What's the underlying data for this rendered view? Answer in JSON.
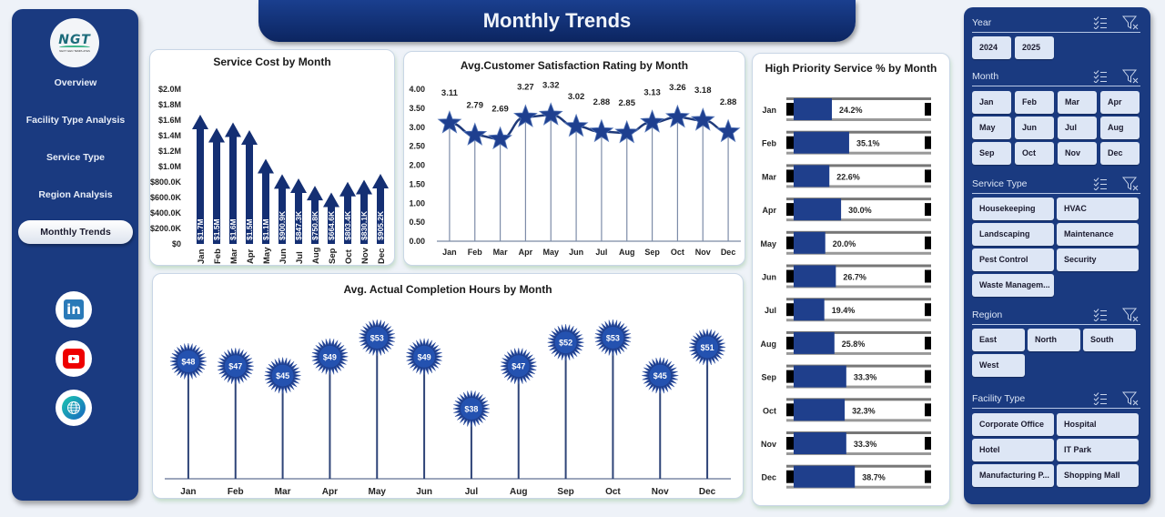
{
  "nav": {
    "logo_text": "NGT",
    "logo_tagline": "NEXT GEN TEMPLATES",
    "items": [
      {
        "label": "Overview"
      },
      {
        "label": "Facility Type Analysis"
      },
      {
        "label": "Service Type"
      },
      {
        "label": "Region Analysis"
      },
      {
        "label": "Monthly Trends",
        "active": true
      }
    ],
    "social": [
      "linkedin-icon",
      "youtube-icon",
      "globe-icon"
    ]
  },
  "header": {
    "title": "Monthly Trends"
  },
  "colors": {
    "navy": "#1a3a80",
    "bar": "#142f73",
    "star": "#1e3f8f",
    "accent_bar": "#1f3f8c"
  },
  "chart_data": [
    {
      "type": "bar",
      "title": "Service Cost by Month",
      "categories": [
        "Jan",
        "Feb",
        "Mar",
        "Apr",
        "May",
        "Jun",
        "Jul",
        "Aug",
        "Sep",
        "Oct",
        "Nov",
        "Dec"
      ],
      "values": [
        1670000,
        1500000,
        1570000,
        1470000,
        1100000,
        900900,
        847300,
        750800,
        664600,
        803400,
        830100,
        905200
      ],
      "labels": [
        "$1.7M",
        "$1.5M",
        "$1.6M",
        "$1.5M",
        "$1.1M",
        "$900.9K",
        "$847.3K",
        "$750.8K",
        "$664.6K",
        "$803.4K",
        "$830.1K",
        "$905.2K"
      ],
      "yticks": [
        "$0",
        "$200.0K",
        "$400.0K",
        "$600.0K",
        "$800.0K",
        "$1.0M",
        "$1.2M",
        "$1.4M",
        "$1.6M",
        "$1.8M",
        "$2.0M"
      ],
      "ylim": [
        0,
        2000000
      ]
    },
    {
      "type": "line",
      "title": "Avg.Customer Satisfaction Rating by Month",
      "categories": [
        "Jan",
        "Feb",
        "Mar",
        "Apr",
        "May",
        "Jun",
        "Jul",
        "Aug",
        "Sep",
        "Oct",
        "Nov",
        "Dec"
      ],
      "values": [
        3.11,
        2.79,
        2.69,
        3.27,
        3.32,
        3.02,
        2.88,
        2.85,
        3.13,
        3.26,
        3.18,
        2.88
      ],
      "labels": [
        "3.11",
        "2.79",
        "2.69",
        "3.27",
        "3.32",
        "3.02",
        "2.88",
        "2.85",
        "3.13",
        "3.26",
        "3.18",
        "2.88"
      ],
      "yticks": [
        "0.00",
        "0.50",
        "1.00",
        "1.50",
        "2.00",
        "2.50",
        "3.00",
        "3.50",
        "4.00"
      ],
      "ylim": [
        0,
        4
      ]
    },
    {
      "type": "bar",
      "orientation": "horizontal",
      "title": "High Priority Service % by Month",
      "categories": [
        "Jan",
        "Feb",
        "Mar",
        "Apr",
        "May",
        "Jun",
        "Jul",
        "Aug",
        "Sep",
        "Oct",
        "Nov",
        "Dec"
      ],
      "values": [
        24.2,
        35.1,
        22.6,
        30.0,
        20.0,
        26.7,
        19.4,
        25.8,
        33.3,
        32.3,
        33.3,
        38.7
      ],
      "labels": [
        "24.2%",
        "35.1%",
        "22.6%",
        "30.0%",
        "20.0%",
        "26.7%",
        "19.4%",
        "25.8%",
        "33.3%",
        "32.3%",
        "33.3%",
        "38.7%"
      ],
      "xlim": [
        0,
        100
      ]
    },
    {
      "type": "scatter",
      "title": "Avg. Actual Completion Hours by Month",
      "categories": [
        "Jan",
        "Feb",
        "Mar",
        "Apr",
        "May",
        "Jun",
        "Jul",
        "Aug",
        "Sep",
        "Oct",
        "Nov",
        "Dec"
      ],
      "values": [
        48,
        47,
        45,
        49,
        53,
        49,
        38,
        47,
        52,
        53,
        45,
        51
      ],
      "labels": [
        "$48",
        "$47",
        "$45",
        "$49",
        "$53",
        "$49",
        "$38",
        "$47",
        "$52",
        "$53",
        "$45",
        "$51"
      ]
    }
  ],
  "slicers": {
    "year": {
      "label": "Year",
      "options": [
        "2024",
        "2025"
      ]
    },
    "month": {
      "label": "Month",
      "options": [
        "Jan",
        "Feb",
        "Mar",
        "Apr",
        "May",
        "Jun",
        "Jul",
        "Aug",
        "Sep",
        "Oct",
        "Nov",
        "Dec"
      ]
    },
    "service_type": {
      "label": "Service Type",
      "options": [
        "Housekeeping",
        "HVAC",
        "Landscaping",
        "Maintenance",
        "Pest Control",
        "Security",
        "Waste Managem..."
      ]
    },
    "region": {
      "label": "Region",
      "options": [
        "East",
        "North",
        "South",
        "West"
      ]
    },
    "facility_type": {
      "label": "Facility Type",
      "options": [
        "Corporate Office",
        "Hospital",
        "Hotel",
        "IT Park",
        "Manufacturing P...",
        "Shopping Mall"
      ]
    }
  }
}
